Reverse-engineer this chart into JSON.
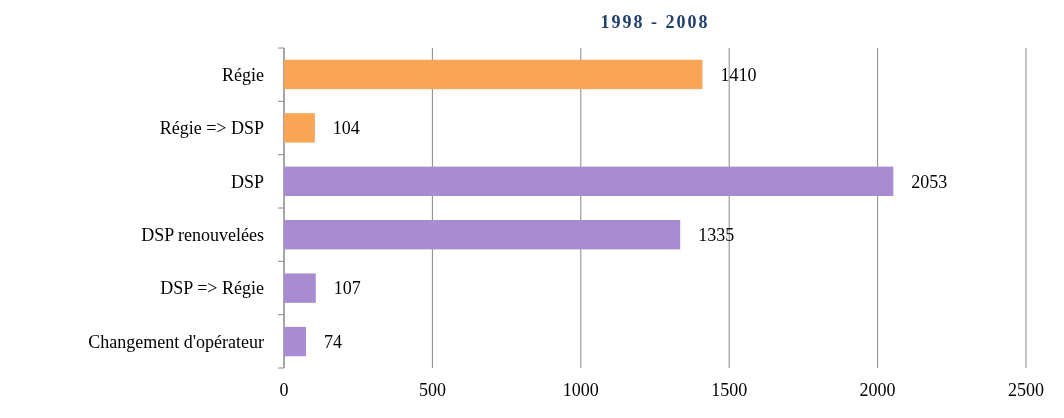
{
  "chart_data": {
    "type": "bar",
    "orientation": "horizontal",
    "title": "1998 - 2008",
    "categories": [
      "Régie",
      "Régie => DSP",
      "DSP",
      "DSP renouvelées",
      "DSP => Régie",
      "Changement d'opérateur"
    ],
    "values": [
      1410,
      104,
      2053,
      1335,
      107,
      74
    ],
    "colors": [
      "#f8a656",
      "#f8a656",
      "#a88bd0",
      "#a88bd0",
      "#a88bd0",
      "#a88bd0"
    ],
    "xlim": [
      0,
      2500
    ],
    "xticks": [
      0,
      500,
      1000,
      1500,
      2000,
      2500
    ],
    "grid": "x",
    "data_labels": true
  }
}
